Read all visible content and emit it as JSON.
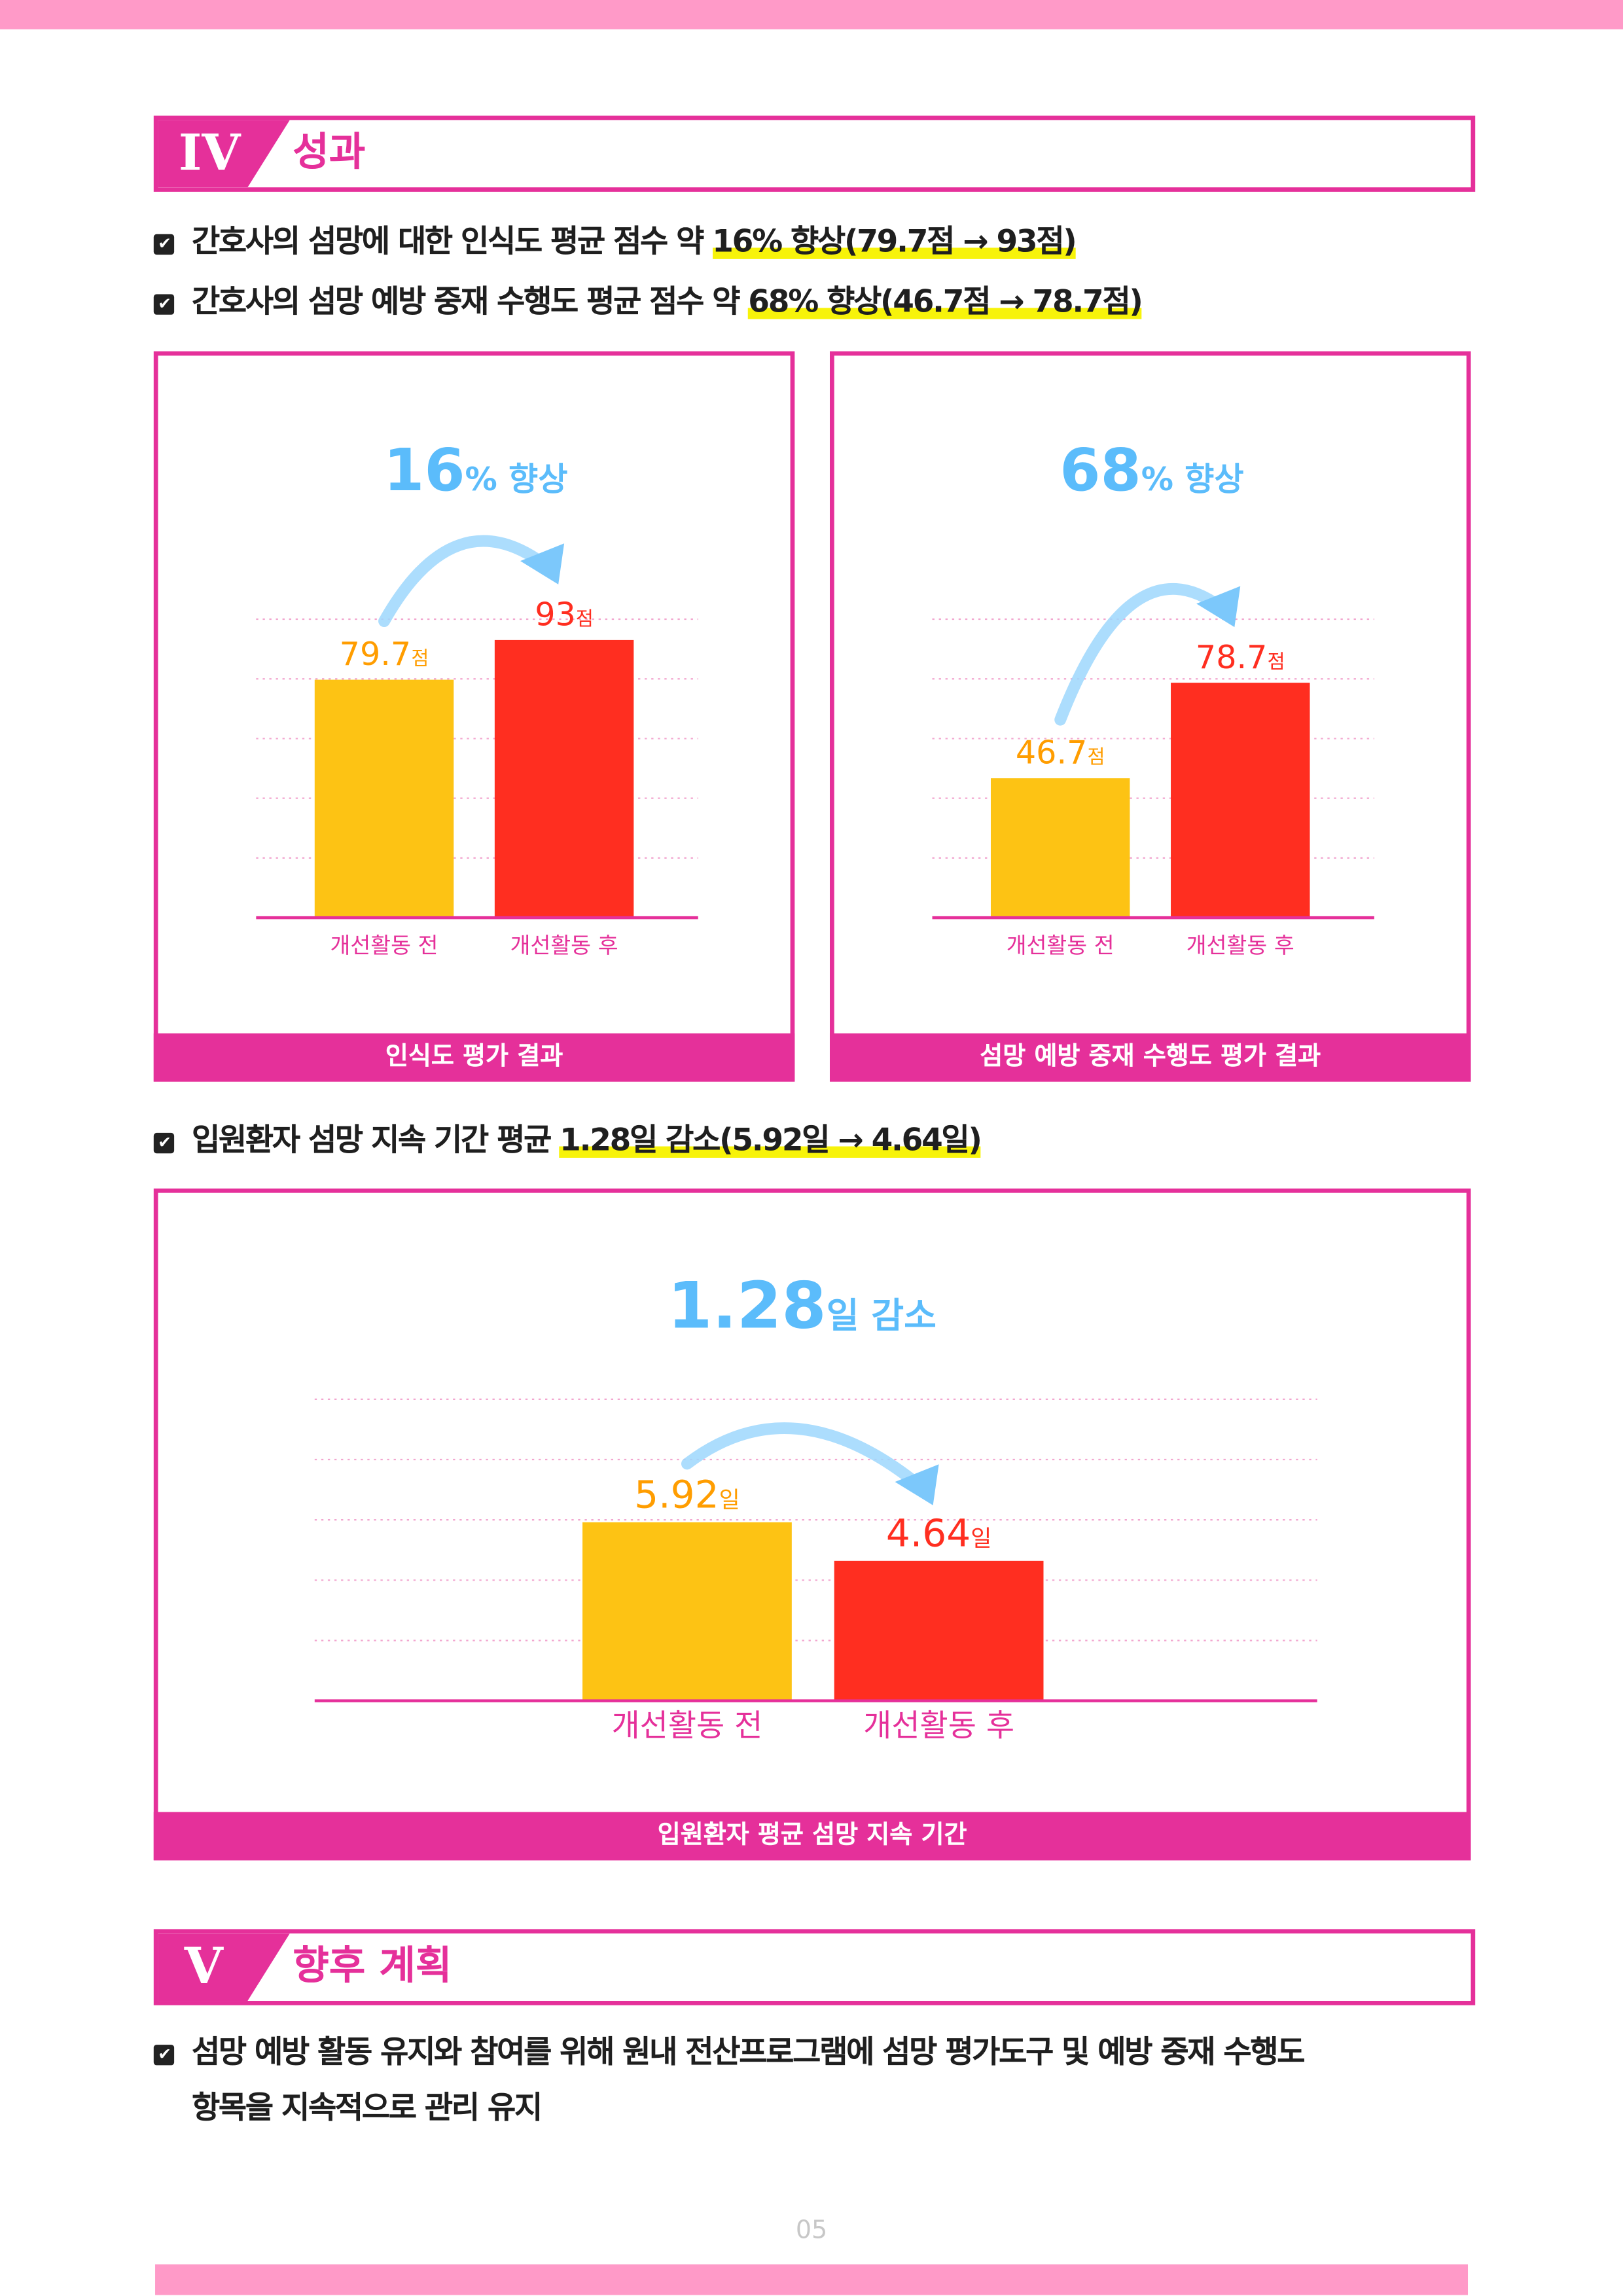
{
  "section4": {
    "numeral": "IV",
    "title": "성과"
  },
  "bullets": [
    {
      "pre": "간호사의 섬망에 대한 인식도 평균 점수 약 ",
      "hl": "16% 향상(79.7점 → 93점)"
    },
    {
      "pre": "간호사의 섬망 예방 중재 수행도 평균 점수 약 ",
      "hl": "68% 향상(46.7점 → 78.7점)"
    },
    {
      "pre": "입원환자 섬망 지속 기간 평균 ",
      "hl": "1.28일 감소(5.92일 → 4.64일)"
    }
  ],
  "colors": {
    "pink": "#e5309a",
    "before": "#fdc314",
    "after": "#ff2e20",
    "beforeLabel": "#ff9d00",
    "blue": "#5bbcfb"
  },
  "chart_data": [
    {
      "type": "bar",
      "title": "인식도 평가 결과",
      "headline_num": "16",
      "headline_unit": "% 향상",
      "categories": [
        "개선활동 전",
        "개선활동 후"
      ],
      "values": [
        79.7,
        93
      ],
      "value_labels": [
        "79.7",
        "93"
      ],
      "unit": "점",
      "ylim": [
        0,
        100
      ],
      "grid_step": 20
    },
    {
      "type": "bar",
      "title": "섬망 예방 중재 수행도 평가 결과",
      "headline_num": "68",
      "headline_unit": "% 향상",
      "categories": [
        "개선활동 전",
        "개선활동 후"
      ],
      "values": [
        46.7,
        78.7
      ],
      "value_labels": [
        "46.7",
        "78.7"
      ],
      "unit": "점",
      "ylim": [
        0,
        100
      ],
      "grid_step": 20
    },
    {
      "type": "bar",
      "title": "입원환자 평균 섬망 지속 기간",
      "headline_num": "1.28",
      "headline_unit": "일 감소",
      "categories": [
        "개선활동 전",
        "개선활동 후"
      ],
      "values": [
        5.92,
        4.64
      ],
      "value_labels": [
        "5.92",
        "4.64"
      ],
      "unit": "일",
      "ylim": [
        0,
        10
      ],
      "grid_step": 2
    }
  ],
  "section5": {
    "numeral": "V",
    "title": "향후 계획"
  },
  "plan": [
    "섬망 예방 활동 유지와 참여를 위해 원내 전산프로그램에 섬망 평가도구 및 예방 중재 수행도",
    "항목을 지속적으로 관리 유지"
  ],
  "page_number": "05"
}
